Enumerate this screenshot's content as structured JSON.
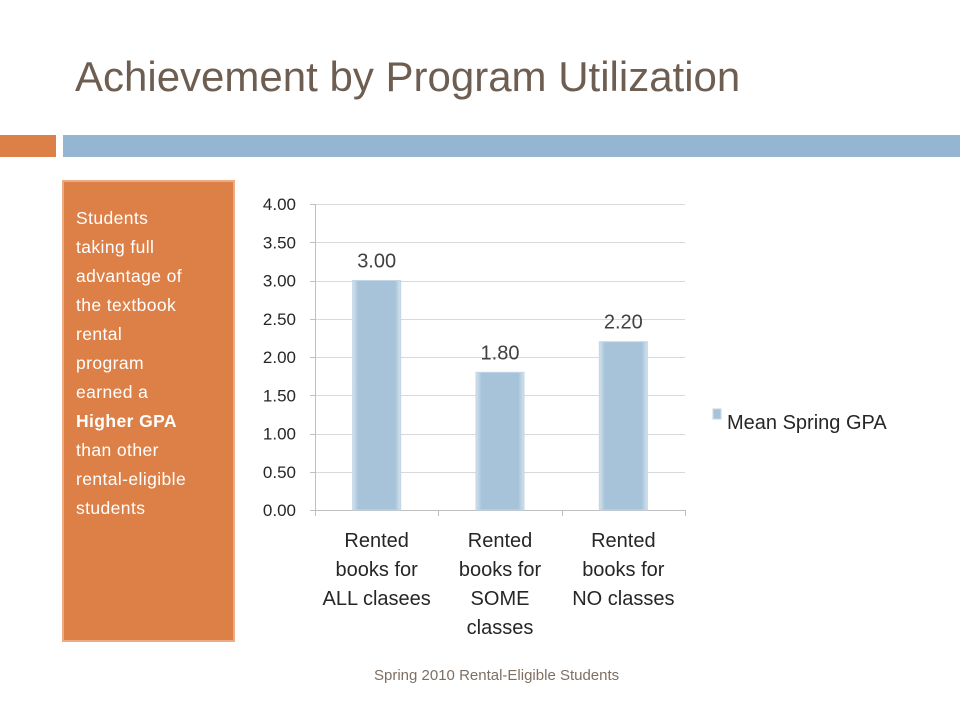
{
  "slide": {
    "title": "Achievement by Program Utilization",
    "footer": "Spring 2010 Rental-Eligible Students",
    "colors": {
      "title": "#6E5E52",
      "accent_orange": "#DD8047",
      "accent_blue": "#94B6D2",
      "callout_text": "#FFFFFF",
      "footer": "#7F6F62"
    }
  },
  "callout": {
    "lines_before": [
      "Students",
      "taking full",
      "advantage of",
      "the textbook",
      "rental",
      "program",
      "earned a"
    ],
    "emphasis": "Higher GPA",
    "lines_after": [
      "than other",
      "rental-eligible",
      "students"
    ]
  },
  "chart_data": {
    "type": "bar",
    "categories": [
      "Rented books for ALL clasees",
      "Rented books for SOME classes",
      "Rented books for NO classes"
    ],
    "series": [
      {
        "name": "Mean Spring GPA",
        "values": [
          3.0,
          1.8,
          2.2
        ],
        "color": "#A6C3D9"
      }
    ],
    "data_labels": [
      "3.00",
      "1.80",
      "2.20"
    ],
    "y_tick_labels": [
      "0.00",
      "0.50",
      "1.00",
      "1.50",
      "2.00",
      "2.50",
      "3.00",
      "3.50",
      "4.00"
    ],
    "ylim": [
      0,
      4
    ],
    "grid": true,
    "legend_position": "right"
  }
}
